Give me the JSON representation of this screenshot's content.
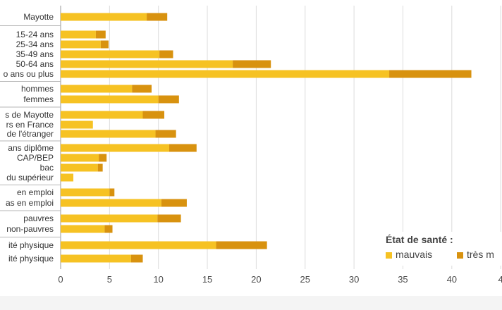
{
  "chart_data": {
    "type": "bar",
    "orientation": "horizontal",
    "stacked": true,
    "categories": [
      {
        "label": "Mayotte",
        "group": 0
      },
      {
        "label": "15-24 ans",
        "group": 1
      },
      {
        "label": "25-34 ans",
        "group": 1
      },
      {
        "label": "35-49 ans",
        "group": 1
      },
      {
        "label": "50-64 ans",
        "group": 1
      },
      {
        "label": "o ans ou plus",
        "group": 1
      },
      {
        "label": "hommes",
        "group": 2
      },
      {
        "label": "femmes",
        "group": 2
      },
      {
        "label": "s de Mayotte",
        "group": 3
      },
      {
        "label": "rs en France",
        "group": 3
      },
      {
        "label": "de l'étranger",
        "group": 3
      },
      {
        "label": "ans diplôme",
        "group": 4
      },
      {
        "label": "CAP/BEP",
        "group": 4
      },
      {
        "label": "bac",
        "group": 4
      },
      {
        "label": "du supérieur",
        "group": 4
      },
      {
        "label": "en emploi",
        "group": 5
      },
      {
        "label": "as en emploi",
        "group": 5
      },
      {
        "label": "pauvres",
        "group": 6
      },
      {
        "label": "non-pauvres",
        "group": 6
      },
      {
        "label": "ité physique",
        "group": 7
      },
      {
        "label": "ité physique",
        "group": 7
      }
    ],
    "series": [
      {
        "name": "mauvais",
        "color": "#f6c223",
        "values": [
          8.8,
          3.6,
          4.1,
          10.1,
          17.6,
          33.6,
          7.3,
          10.0,
          8.4,
          3.3,
          9.7,
          11.1,
          3.9,
          3.8,
          1.3,
          5.0,
          10.3,
          9.9,
          4.5,
          15.9,
          7.2
        ]
      },
      {
        "name": "très m",
        "color": "#d8920f",
        "values": [
          2.1,
          1.0,
          0.8,
          1.4,
          3.9,
          8.4,
          2.0,
          2.1,
          2.2,
          0.0,
          2.1,
          2.8,
          0.8,
          0.5,
          0.0,
          0.5,
          2.6,
          2.4,
          0.8,
          5.2,
          1.2
        ]
      }
    ],
    "xticks": [
      "0",
      "5",
      "10",
      "15",
      "20",
      "25",
      "30",
      "35",
      "40",
      "4"
    ],
    "xlim": [
      0,
      45
    ],
    "grid": true,
    "legend_title": "État de santé :",
    "legend_position": "bottom-right"
  }
}
